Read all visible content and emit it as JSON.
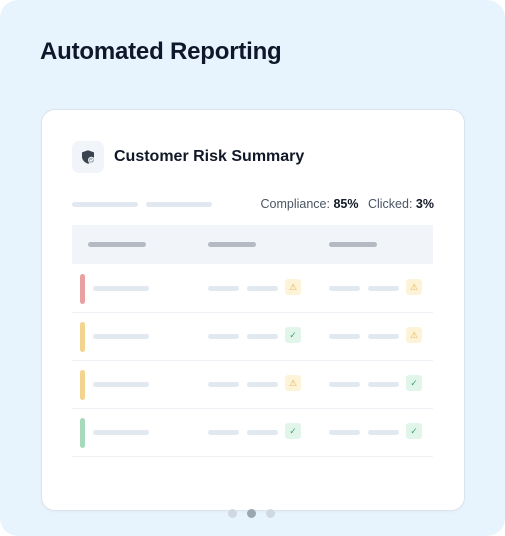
{
  "page": {
    "title": "Automated Reporting"
  },
  "card": {
    "title": "Customer Risk Summary",
    "logo_icon": "shield-check-icon"
  },
  "metrics": {
    "compliance_label": "Compliance:",
    "compliance_value": "85%",
    "clicked_label": "Clicked:",
    "clicked_value": "3%"
  },
  "colors": {
    "risk_high": "#e8a0a0",
    "risk_medium": "#f3d48e",
    "risk_low": "#a8d9bd",
    "warn": "#e8b04a",
    "ok": "#3fa46a"
  },
  "rows": [
    {
      "risk": "high",
      "col1_status": "warning",
      "col2_status": "warning"
    },
    {
      "risk": "medium",
      "col1_status": "ok",
      "col2_status": "warning"
    },
    {
      "risk": "medium",
      "col1_status": "warning",
      "col2_status": "ok"
    },
    {
      "risk": "low",
      "col1_status": "ok",
      "col2_status": "ok"
    }
  ],
  "icons": {
    "warning": "⚠",
    "ok": "✓"
  },
  "carousel": {
    "count": 3,
    "active": 2
  }
}
